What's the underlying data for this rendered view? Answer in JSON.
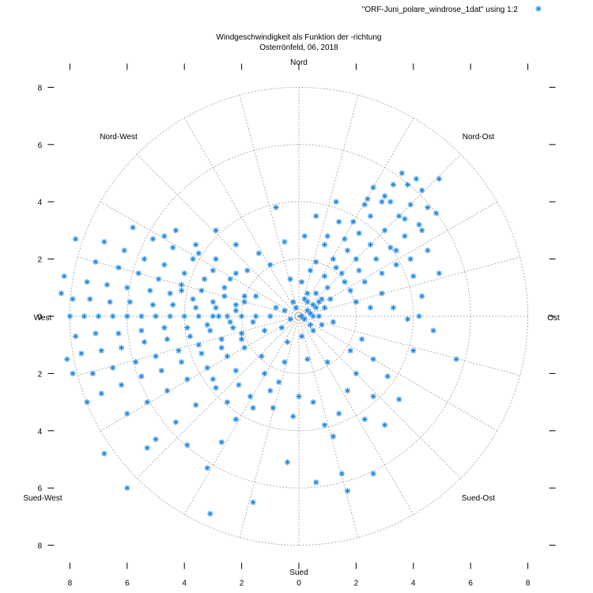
{
  "chart_data": {
    "type": "scatter",
    "coordinate_system": "polar",
    "title": "Windgeschwindigkeit als Funktion der -richtung",
    "subtitle": "Osterrönfeld, 06, 2018",
    "legend": {
      "label": "\"ORF-Juni_polare_windrose_1dat\" using 1:2",
      "placement": "top-right",
      "marker": "asterisk"
    },
    "series_color": "#1e88e5",
    "axis_range": {
      "min": -8,
      "max": 8
    },
    "radial_rings": [
      2,
      4,
      6,
      8
    ],
    "angular_step_deg": 15,
    "grid": true,
    "x_ticks": [
      {
        "value": -8,
        "label": "8"
      },
      {
        "value": -6,
        "label": "6"
      },
      {
        "value": -4,
        "label": "4"
      },
      {
        "value": -2,
        "label": "2"
      },
      {
        "value": 0,
        "label": "0"
      },
      {
        "value": 2,
        "label": "2"
      },
      {
        "value": 4,
        "label": "4"
      },
      {
        "value": 6,
        "label": "6"
      },
      {
        "value": 8,
        "label": "8"
      }
    ],
    "y_ticks": [
      {
        "value": 8,
        "label": "8"
      },
      {
        "value": 6,
        "label": "6"
      },
      {
        "value": 4,
        "label": "4"
      },
      {
        "value": 2,
        "label": "2"
      },
      {
        "value": 0,
        "label": "0"
      },
      {
        "value": -2,
        "label": "2"
      },
      {
        "value": -4,
        "label": "4"
      },
      {
        "value": -6,
        "label": "6"
      },
      {
        "value": -8,
        "label": "8"
      }
    ],
    "direction_labels": {
      "north": "Nord",
      "north_east": "Nord-Ost",
      "east": "Ost",
      "south_east": "Sued-Ost",
      "south": "Sued",
      "south_west": "Sued-West",
      "west": "West",
      "north_west": "Nord-West"
    },
    "points": [
      [
        -7.5,
        0.0
      ],
      [
        -8.0,
        0.0
      ],
      [
        -7.0,
        0.0
      ],
      [
        -6.5,
        0.0
      ],
      [
        -6.0,
        0.0
      ],
      [
        -5.5,
        0.0
      ],
      [
        -5.0,
        0.0
      ],
      [
        -4.5,
        0.0
      ],
      [
        -4.0,
        0.0
      ],
      [
        -3.5,
        0.0
      ],
      [
        -3.0,
        0.0
      ],
      [
        -2.5,
        0.0
      ],
      [
        -2.0,
        0.0
      ],
      [
        -1.5,
        0.0
      ],
      [
        -1.0,
        0.0
      ],
      [
        -7.9,
        0.6
      ],
      [
        -7.3,
        0.6
      ],
      [
        -6.6,
        0.5
      ],
      [
        -5.9,
        0.5
      ],
      [
        -5.1,
        0.4
      ],
      [
        -4.4,
        0.4
      ],
      [
        -3.6,
        0.3
      ],
      [
        -2.9,
        0.3
      ],
      [
        -2.2,
        0.2
      ],
      [
        -7.8,
        -0.7
      ],
      [
        -7.1,
        -0.6
      ],
      [
        -6.3,
        -0.6
      ],
      [
        -5.5,
        -0.5
      ],
      [
        -4.7,
        -0.4
      ],
      [
        -3.9,
        -0.4
      ],
      [
        -3.2,
        -0.3
      ],
      [
        -2.4,
        -0.2
      ],
      [
        -1.6,
        -0.2
      ],
      [
        -7.4,
        1.2
      ],
      [
        -6.7,
        1.1
      ],
      [
        -6.0,
        1.0
      ],
      [
        -5.2,
        0.9
      ],
      [
        -4.5,
        0.8
      ],
      [
        -3.7,
        0.6
      ],
      [
        -3.0,
        0.5
      ],
      [
        -2.2,
        0.4
      ],
      [
        -7.1,
        1.9
      ],
      [
        -6.3,
        1.7
      ],
      [
        -5.6,
        1.5
      ],
      [
        -4.9,
        1.3
      ],
      [
        -4.1,
        1.1
      ],
      [
        -3.4,
        0.9
      ],
      [
        -2.6,
        0.7
      ],
      [
        -1.9,
        0.5
      ],
      [
        -7.6,
        -1.3
      ],
      [
        -6.9,
        -1.2
      ],
      [
        -6.2,
        -1.1
      ],
      [
        -5.4,
        -0.9
      ],
      [
        -4.6,
        -0.8
      ],
      [
        -3.8,
        -0.7
      ],
      [
        -3.1,
        -0.5
      ],
      [
        -2.3,
        -0.4
      ],
      [
        -7.2,
        -2.0
      ],
      [
        -6.5,
        -1.8
      ],
      [
        -5.7,
        -1.6
      ],
      [
        -5.0,
        -1.4
      ],
      [
        -4.2,
        -1.2
      ],
      [
        -3.5,
        -1.0
      ],
      [
        -2.7,
        -0.8
      ],
      [
        -2.0,
        -0.6
      ],
      [
        -6.9,
        -2.7
      ],
      [
        -6.2,
        -2.4
      ],
      [
        -5.5,
        -2.1
      ],
      [
        -4.8,
        -1.9
      ],
      [
        -4.1,
        -1.6
      ],
      [
        -3.4,
        -1.3
      ],
      [
        -2.7,
        -1.1
      ],
      [
        -2.0,
        -0.8
      ],
      [
        -6.8,
        2.6
      ],
      [
        -6.1,
        2.3
      ],
      [
        -5.4,
        2.0
      ],
      [
        -4.7,
        1.8
      ],
      [
        -4.0,
        1.5
      ],
      [
        -3.3,
        1.3
      ],
      [
        -2.6,
        1.0
      ],
      [
        -1.9,
        0.7
      ],
      [
        -6.0,
        -3.4
      ],
      [
        -5.3,
        -3.0
      ],
      [
        -4.6,
        -2.6
      ],
      [
        -3.9,
        -2.2
      ],
      [
        -3.2,
        -1.8
      ],
      [
        -2.5,
        -1.4
      ],
      [
        -1.9,
        -1.1
      ],
      [
        -5.8,
        3.1
      ],
      [
        -5.1,
        2.7
      ],
      [
        -4.4,
        2.4
      ],
      [
        -3.7,
        2.0
      ],
      [
        -3.0,
        1.6
      ],
      [
        -2.4,
        1.3
      ],
      [
        -5.0,
        -4.3
      ],
      [
        -4.3,
        -3.7
      ],
      [
        -3.6,
        -3.1
      ],
      [
        -2.9,
        -2.5
      ],
      [
        -2.2,
        -1.9
      ],
      [
        -4.3,
        3.0
      ],
      [
        -3.6,
        2.5
      ],
      [
        -2.9,
        2.0
      ],
      [
        -2.2,
        1.5
      ],
      [
        -3.2,
        -5.3
      ],
      [
        -2.7,
        -4.4
      ],
      [
        -2.2,
        -3.6
      ],
      [
        -1.7,
        -2.8
      ],
      [
        -8.2,
        1.4
      ],
      [
        -8.3,
        0.8
      ],
      [
        -7.9,
        -2.0
      ],
      [
        -8.1,
        -1.5
      ],
      [
        -7.4,
        -3.0
      ],
      [
        -7.8,
        2.7
      ],
      [
        -6.8,
        -4.8
      ],
      [
        -6.0,
        -6.0
      ],
      [
        -5.3,
        -4.6
      ],
      [
        -4.7,
        2.8
      ],
      [
        -3.9,
        -4.5
      ],
      [
        -3.1,
        -6.9
      ],
      [
        -1.6,
        -6.5
      ],
      [
        -4.1,
        0.9
      ],
      [
        -2.8,
        0.0
      ],
      [
        -1.5,
        0.7
      ],
      [
        -1.2,
        -0.5
      ],
      [
        -0.8,
        0.3
      ],
      [
        -0.6,
        -0.4
      ],
      [
        -0.5,
        0.2
      ],
      [
        -0.3,
        -0.1
      ],
      [
        -1.0,
        1.8
      ],
      [
        -0.5,
        2.6
      ],
      [
        -0.8,
        3.8
      ],
      [
        -0.3,
        1.3
      ],
      [
        -1.3,
        -1.4
      ],
      [
        -1.0,
        -2.6
      ],
      [
        -0.9,
        -3.2
      ],
      [
        -0.7,
        -2.3
      ],
      [
        -0.5,
        -1.6
      ],
      [
        -0.4,
        -0.9
      ],
      [
        -0.2,
        0.5
      ],
      [
        -2.2,
        2.5
      ],
      [
        -2.9,
        3.0
      ],
      [
        -3.5,
        2.2
      ],
      [
        -1.8,
        1.6
      ],
      [
        -1.4,
        2.2
      ],
      [
        -2.1,
        -2.4
      ],
      [
        -1.6,
        -3.2
      ],
      [
        -2.5,
        -3.0
      ],
      [
        -3.0,
        -2.2
      ],
      [
        -1.2,
        -2.0
      ],
      [
        1.0,
        1.0
      ],
      [
        1.5,
        1.5
      ],
      [
        2.0,
        2.0
      ],
      [
        2.5,
        2.5
      ],
      [
        3.0,
        3.0
      ],
      [
        3.5,
        3.5
      ],
      [
        3.9,
        3.9
      ],
      [
        4.3,
        4.4
      ],
      [
        1.3,
        1.7
      ],
      [
        1.7,
        2.3
      ],
      [
        2.1,
        2.9
      ],
      [
        2.5,
        3.5
      ],
      [
        2.9,
        4.0
      ],
      [
        3.3,
        4.6
      ],
      [
        3.6,
        5.0
      ],
      [
        1.6,
        1.2
      ],
      [
        2.1,
        1.6
      ],
      [
        2.7,
        2.0
      ],
      [
        3.2,
        2.4
      ],
      [
        3.7,
        2.8
      ],
      [
        4.2,
        3.2
      ],
      [
        4.8,
        3.6
      ],
      [
        0.9,
        1.4
      ],
      [
        1.2,
        2.0
      ],
      [
        1.6,
        2.7
      ],
      [
        1.9,
        3.3
      ],
      [
        2.3,
        3.9
      ],
      [
        2.6,
        4.5
      ],
      [
        1.8,
        0.9
      ],
      [
        2.3,
        1.2
      ],
      [
        2.9,
        1.5
      ],
      [
        3.4,
        1.8
      ],
      [
        3.9,
        2.0
      ],
      [
        4.5,
        2.3
      ],
      [
        0.8,
        0.6
      ],
      [
        0.5,
        0.4
      ],
      [
        0.3,
        0.2
      ],
      [
        0.1,
        0.0
      ],
      [
        0.2,
        -0.1
      ],
      [
        0.4,
        0.1
      ],
      [
        0.6,
        0.3
      ],
      [
        0.7,
        0.0
      ],
      [
        0.9,
        0.3
      ],
      [
        1.1,
        0.6
      ],
      [
        0.8,
        -0.3
      ],
      [
        1.2,
        -0.2
      ],
      [
        0.5,
        -0.5
      ],
      [
        2.4,
        4.1
      ],
      [
        3.0,
        4.2
      ],
      [
        4.1,
        4.8
      ],
      [
        4.9,
        4.8
      ],
      [
        3.8,
        4.6
      ],
      [
        4.5,
        3.8
      ],
      [
        3.7,
        3.4
      ],
      [
        2.2,
        -0.8
      ],
      [
        2.6,
        -1.5
      ],
      [
        2.0,
        -2.0
      ],
      [
        3.1,
        -2.1
      ],
      [
        3.5,
        -2.9
      ],
      [
        2.3,
        -3.6
      ],
      [
        4.0,
        -1.2
      ],
      [
        3.0,
        -3.8
      ],
      [
        1.4,
        -3.4
      ],
      [
        2.6,
        -2.8
      ],
      [
        1.8,
        -1.2
      ],
      [
        2.9,
        0.8
      ],
      [
        3.3,
        0.3
      ],
      [
        3.8,
        -0.1
      ],
      [
        4.2,
        0.0
      ],
      [
        4.7,
        -0.5
      ],
      [
        4.3,
        0.7
      ],
      [
        4.0,
        1.4
      ],
      [
        4.9,
        1.5
      ],
      [
        5.5,
        -1.5
      ],
      [
        3.4,
        2.3
      ],
      [
        1.0,
        -1.6
      ],
      [
        1.7,
        -2.6
      ],
      [
        0.9,
        -3.8
      ],
      [
        1.2,
        -4.2
      ],
      [
        1.5,
        -5.5
      ],
      [
        2.6,
        -5.5
      ],
      [
        1.7,
        -6.1
      ],
      [
        0.3,
        -1.5
      ],
      [
        0.0,
        -2.8
      ],
      [
        -0.2,
        -3.5
      ],
      [
        0.5,
        -3.0
      ],
      [
        -0.4,
        -5.1
      ],
      [
        0.6,
        -5.8
      ],
      [
        0.1,
        -0.7
      ],
      [
        0.3,
        0.8
      ],
      [
        0.1,
        1.2
      ],
      [
        0.6,
        1.9
      ],
      [
        0.2,
        2.8
      ],
      [
        0.6,
        3.5
      ],
      [
        0.9,
        2.5
      ],
      [
        1.3,
        4.0
      ],
      [
        0.4,
        1.6
      ],
      [
        1.0,
        2.8
      ],
      [
        1.4,
        3.3
      ],
      [
        3.2,
        4.0
      ],
      [
        4.3,
        3.0
      ],
      [
        2.0,
        0.5
      ],
      [
        2.5,
        0.3
      ],
      [
        0.3,
        0.5
      ],
      [
        0.6,
        0.8
      ],
      [
        0.4,
        -0.3
      ],
      [
        -0.1,
        0.3
      ],
      [
        0.2,
        0.6
      ],
      [
        0.7,
        0.5
      ],
      [
        0.5,
        0.0
      ]
    ]
  }
}
